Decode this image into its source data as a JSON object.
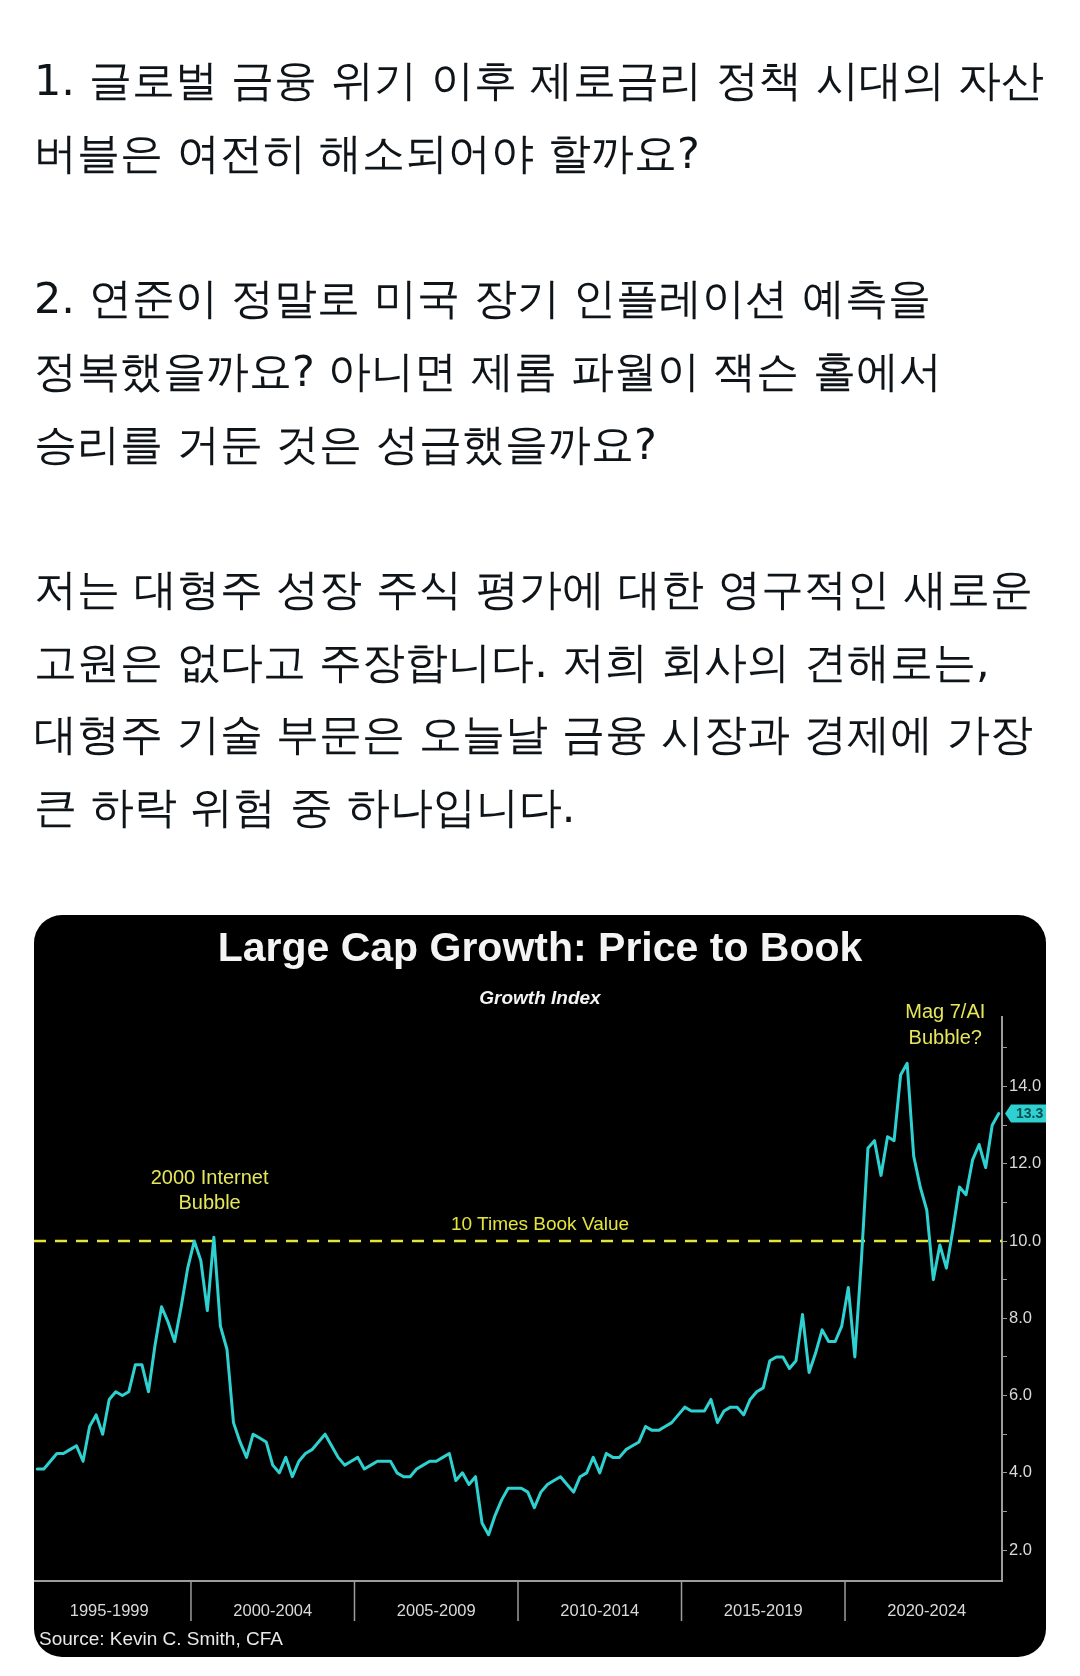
{
  "chart_data": {
    "type": "line",
    "title": "Large Cap Growth: Price to Book",
    "subtitle": "Growth Index",
    "annotations": [
      "1. 글로벌 금융 위기 이후 제로금리 정책 시대의 자산 버블은 여전히 해소되어야 할까요?",
      "2. 연준이 정말로 미국 장기 인플레이션 예측을 정복했을까요? 아니면 제롬 파월이 잭슨 홀에서 승리를 거둔 것은 성급했을까요?",
      "저는 대형주 성장 주식 평가에 대한 영구적인 새로운 고원은 없다고 주장합니다. 저희 회사의 견해로는, 대형주 기술 부문은 오늘날 금융 시장과 경제에 가장 큰 하락 위험 중 하나입니다.",
      "2000 Internet Bubble",
      "Mag 7/AI Bubble?",
      "Source: Kevin C. Smith, CFA"
    ],
    "categories": [
      null,
      null,
      null,
      null,
      null,
      null,
      null,
      null,
      null,
      null,
      null,
      "1995-1999",
      null,
      null,
      null,
      null,
      null,
      null,
      null,
      null,
      null,
      null,
      null,
      null,
      null,
      null,
      null,
      null,
      null,
      null,
      null,
      null,
      null,
      null,
      null,
      null,
      "2000-2004",
      null,
      null,
      null,
      null,
      null,
      null,
      null,
      null,
      null,
      null,
      null,
      null,
      null,
      null,
      null,
      null,
      null,
      null,
      null,
      null,
      null,
      null,
      null,
      null,
      "2005-2009",
      null,
      null,
      null,
      null,
      null,
      null,
      null,
      null,
      null,
      null,
      null,
      null,
      null,
      null,
      null,
      null,
      null,
      null,
      null,
      null,
      null,
      null,
      null,
      null,
      "2010-2014",
      null,
      null,
      null,
      null,
      null,
      null,
      null,
      null,
      null,
      null,
      null,
      null,
      null,
      null,
      null,
      null,
      null,
      null,
      null,
      null,
      null,
      null,
      null,
      null,
      "2015-2019",
      null,
      null,
      null,
      null,
      null,
      null,
      null,
      null,
      null,
      null,
      null,
      null,
      null,
      null,
      null,
      null,
      null,
      null,
      null,
      null,
      null,
      null,
      null,
      null,
      "2020-2024",
      null,
      null,
      null,
      null,
      null,
      null,
      null,
      null,
      null,
      null,
      null
    ],
    "values": [
      4.1,
      4.1,
      4.3,
      4.5,
      4.5,
      4.6,
      4.7,
      4.3,
      5.2,
      5.5,
      5.0,
      5.9,
      6.1,
      6.0,
      6.1,
      6.8,
      6.8,
      6.1,
      7.3,
      8.3,
      7.9,
      7.4,
      8.3,
      9.3,
      10.0,
      9.5,
      8.2,
      10.1,
      7.8,
      7.2,
      5.3,
      4.8,
      4.4,
      5.0,
      4.9,
      4.8,
      4.2,
      4.0,
      4.4,
      3.9,
      4.3,
      4.5,
      4.6,
      4.8,
      5.0,
      4.7,
      4.4,
      4.2,
      4.3,
      4.4,
      4.1,
      4.2,
      4.3,
      4.3,
      4.3,
      4.0,
      3.9,
      3.9,
      4.1,
      4.2,
      4.3,
      4.3,
      4.4,
      4.5,
      3.8,
      4.0,
      3.7,
      3.9,
      2.7,
      2.4,
      2.9,
      3.3,
      3.6,
      3.6,
      3.6,
      3.5,
      3.1,
      3.5,
      3.7,
      3.8,
      3.9,
      3.7,
      3.5,
      3.9,
      4.0,
      4.4,
      4.0,
      4.5,
      4.4,
      4.4,
      4.6,
      4.7,
      4.8,
      5.2,
      5.1,
      5.1,
      5.2,
      5.3,
      5.5,
      5.7,
      5.6,
      5.6,
      5.6,
      5.9,
      5.3,
      5.6,
      5.7,
      5.7,
      5.5,
      5.9,
      6.1,
      6.2,
      6.9,
      7.0,
      7.0,
      6.7,
      6.9,
      8.1,
      6.6,
      7.1,
      7.7,
      7.4,
      7.4,
      7.8,
      8.8,
      7.0,
      9.5,
      12.4,
      12.6,
      11.7,
      12.7,
      12.6,
      14.3,
      14.6,
      12.2,
      11.4,
      10.8,
      9.0,
      9.9,
      9.3,
      10.3,
      11.4,
      11.2,
      12.1,
      12.5,
      11.9,
      13.0,
      13.3
    ],
    "value_labels": [
      null,
      null,
      null,
      null,
      null,
      null,
      null,
      null,
      null,
      null,
      null,
      null,
      null,
      null,
      null,
      null,
      null,
      null,
      null,
      null,
      null,
      null,
      null,
      null,
      null,
      null,
      null,
      null,
      null,
      null,
      null,
      null,
      null,
      null,
      null,
      null,
      null,
      null,
      null,
      null,
      null,
      null,
      null,
      null,
      null,
      null,
      null,
      null,
      null,
      null,
      null,
      null,
      null,
      null,
      null,
      null,
      null,
      null,
      null,
      null,
      null,
      null,
      null,
      null,
      null,
      null,
      null,
      null,
      null,
      null,
      null,
      null,
      null,
      null,
      null,
      null,
      null,
      null,
      null,
      null,
      null,
      null,
      null,
      null,
      null,
      null,
      null,
      null,
      null,
      null,
      null,
      null,
      null,
      null,
      null,
      null,
      null,
      null,
      null,
      null,
      null,
      null,
      null,
      null,
      null,
      null,
      null,
      null,
      null,
      null,
      null,
      null,
      null,
      null,
      null,
      null,
      null,
      null,
      null,
      null,
      null,
      null,
      null,
      null,
      null,
      null,
      null,
      null,
      null,
      null,
      null,
      null,
      null,
      null,
      null,
      null,
      null,
      null,
      null,
      null,
      null,
      null,
      null,
      null,
      null,
      null,
      null,
      "13.3"
    ],
    "color": "#2fd0d0",
    "marker": "none",
    "ylim": [
      1.2,
      15.8
    ],
    "yticks": [
      {
        "value": 2,
        "label": "2.0"
      },
      {
        "value": 3,
        "label": null
      },
      {
        "value": 4,
        "label": "4.0"
      },
      {
        "value": 5,
        "label": null
      },
      {
        "value": 6,
        "label": "6.0"
      },
      {
        "value": 7,
        "label": null
      },
      {
        "value": 8,
        "label": "8.0"
      },
      {
        "value": 9,
        "label": null
      },
      {
        "value": 10,
        "label": "10.0"
      },
      {
        "value": 11,
        "label": null
      },
      {
        "value": 12,
        "label": "12.0"
      },
      {
        "value": 13,
        "label": null
      },
      {
        "value": 14,
        "label": "14.0"
      },
      {
        "value": 15,
        "label": null
      }
    ],
    "ref_lines": [
      {
        "axis": "y",
        "value": 10,
        "label": "10 Times Book Value",
        "color": "#e4e43c",
        "line_style": "dashed"
      }
    ]
  }
}
